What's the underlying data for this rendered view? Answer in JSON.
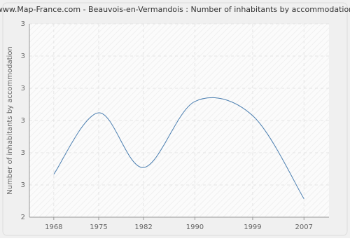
{
  "chart_data": {
    "type": "line",
    "title": "www.Map-France.com - Beauvois-en-Vermandois : Number of inhabitants by accommodation",
    "y_label": "Number of inhabitants by accommodation",
    "x": [
      1968,
      1975,
      1982,
      1990,
      1999,
      2007
    ],
    "series": [
      {
        "name": "Number of inhabitants by accommodation",
        "color": "#4a7eb0",
        "values": [
          2.533,
          2.724,
          2.554,
          2.759,
          2.715,
          2.457
        ]
      }
    ],
    "xlim": [
      1964.2,
      2010.9
    ],
    "xticks": [
      1968,
      1975,
      1982,
      1990,
      1999,
      2007
    ],
    "ylim": [
      2.4,
      3.0
    ],
    "yticks": [
      {
        "value": 2.4,
        "label": "2"
      },
      {
        "value": 2.5,
        "label": "3"
      },
      {
        "value": 2.6,
        "label": "3"
      },
      {
        "value": 2.7,
        "label": "3"
      },
      {
        "value": 2.8,
        "label": "3"
      },
      {
        "value": 2.9,
        "label": "3"
      },
      3
    ],
    "grid": true
  }
}
